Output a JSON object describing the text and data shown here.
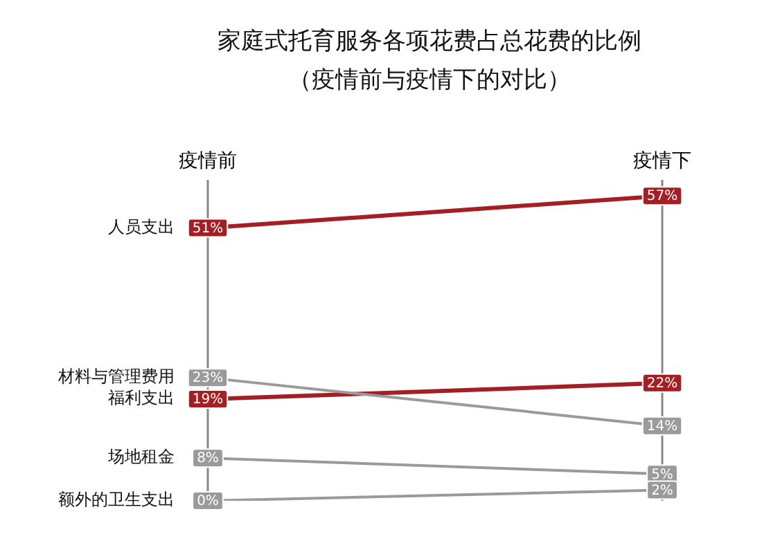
{
  "chart_data": {
    "type": "line",
    "title": "家庭式托育服务各项花费占总花费的比例",
    "subtitle": "（疫情前与疫情下的对比）",
    "categories": [
      "疫情前",
      "疫情下"
    ],
    "ylim": [
      0,
      60
    ],
    "tick_labels": false,
    "legend": false,
    "marker": "square",
    "line_style": "solid",
    "series": [
      {
        "name": "人员支出",
        "color": "#a31f24",
        "values": [
          51,
          57
        ],
        "value_labels": [
          "51%",
          "57%"
        ]
      },
      {
        "name": "材料与管理费用",
        "color": "#9a9a9a",
        "values": [
          23,
          14
        ],
        "value_labels": [
          "23%",
          "14%"
        ]
      },
      {
        "name": "福利支出",
        "color": "#a31f24",
        "values": [
          19,
          22
        ],
        "value_labels": [
          "19%",
          "22%"
        ]
      },
      {
        "name": "场地租金",
        "color": "#9a9a9a",
        "values": [
          8,
          5
        ],
        "value_labels": [
          "8%",
          "5%"
        ]
      },
      {
        "name": "额外的卫生支出",
        "color": "#9a9a9a",
        "values": [
          0,
          2
        ],
        "value_labels": [
          "0%",
          "2%"
        ]
      }
    ]
  }
}
